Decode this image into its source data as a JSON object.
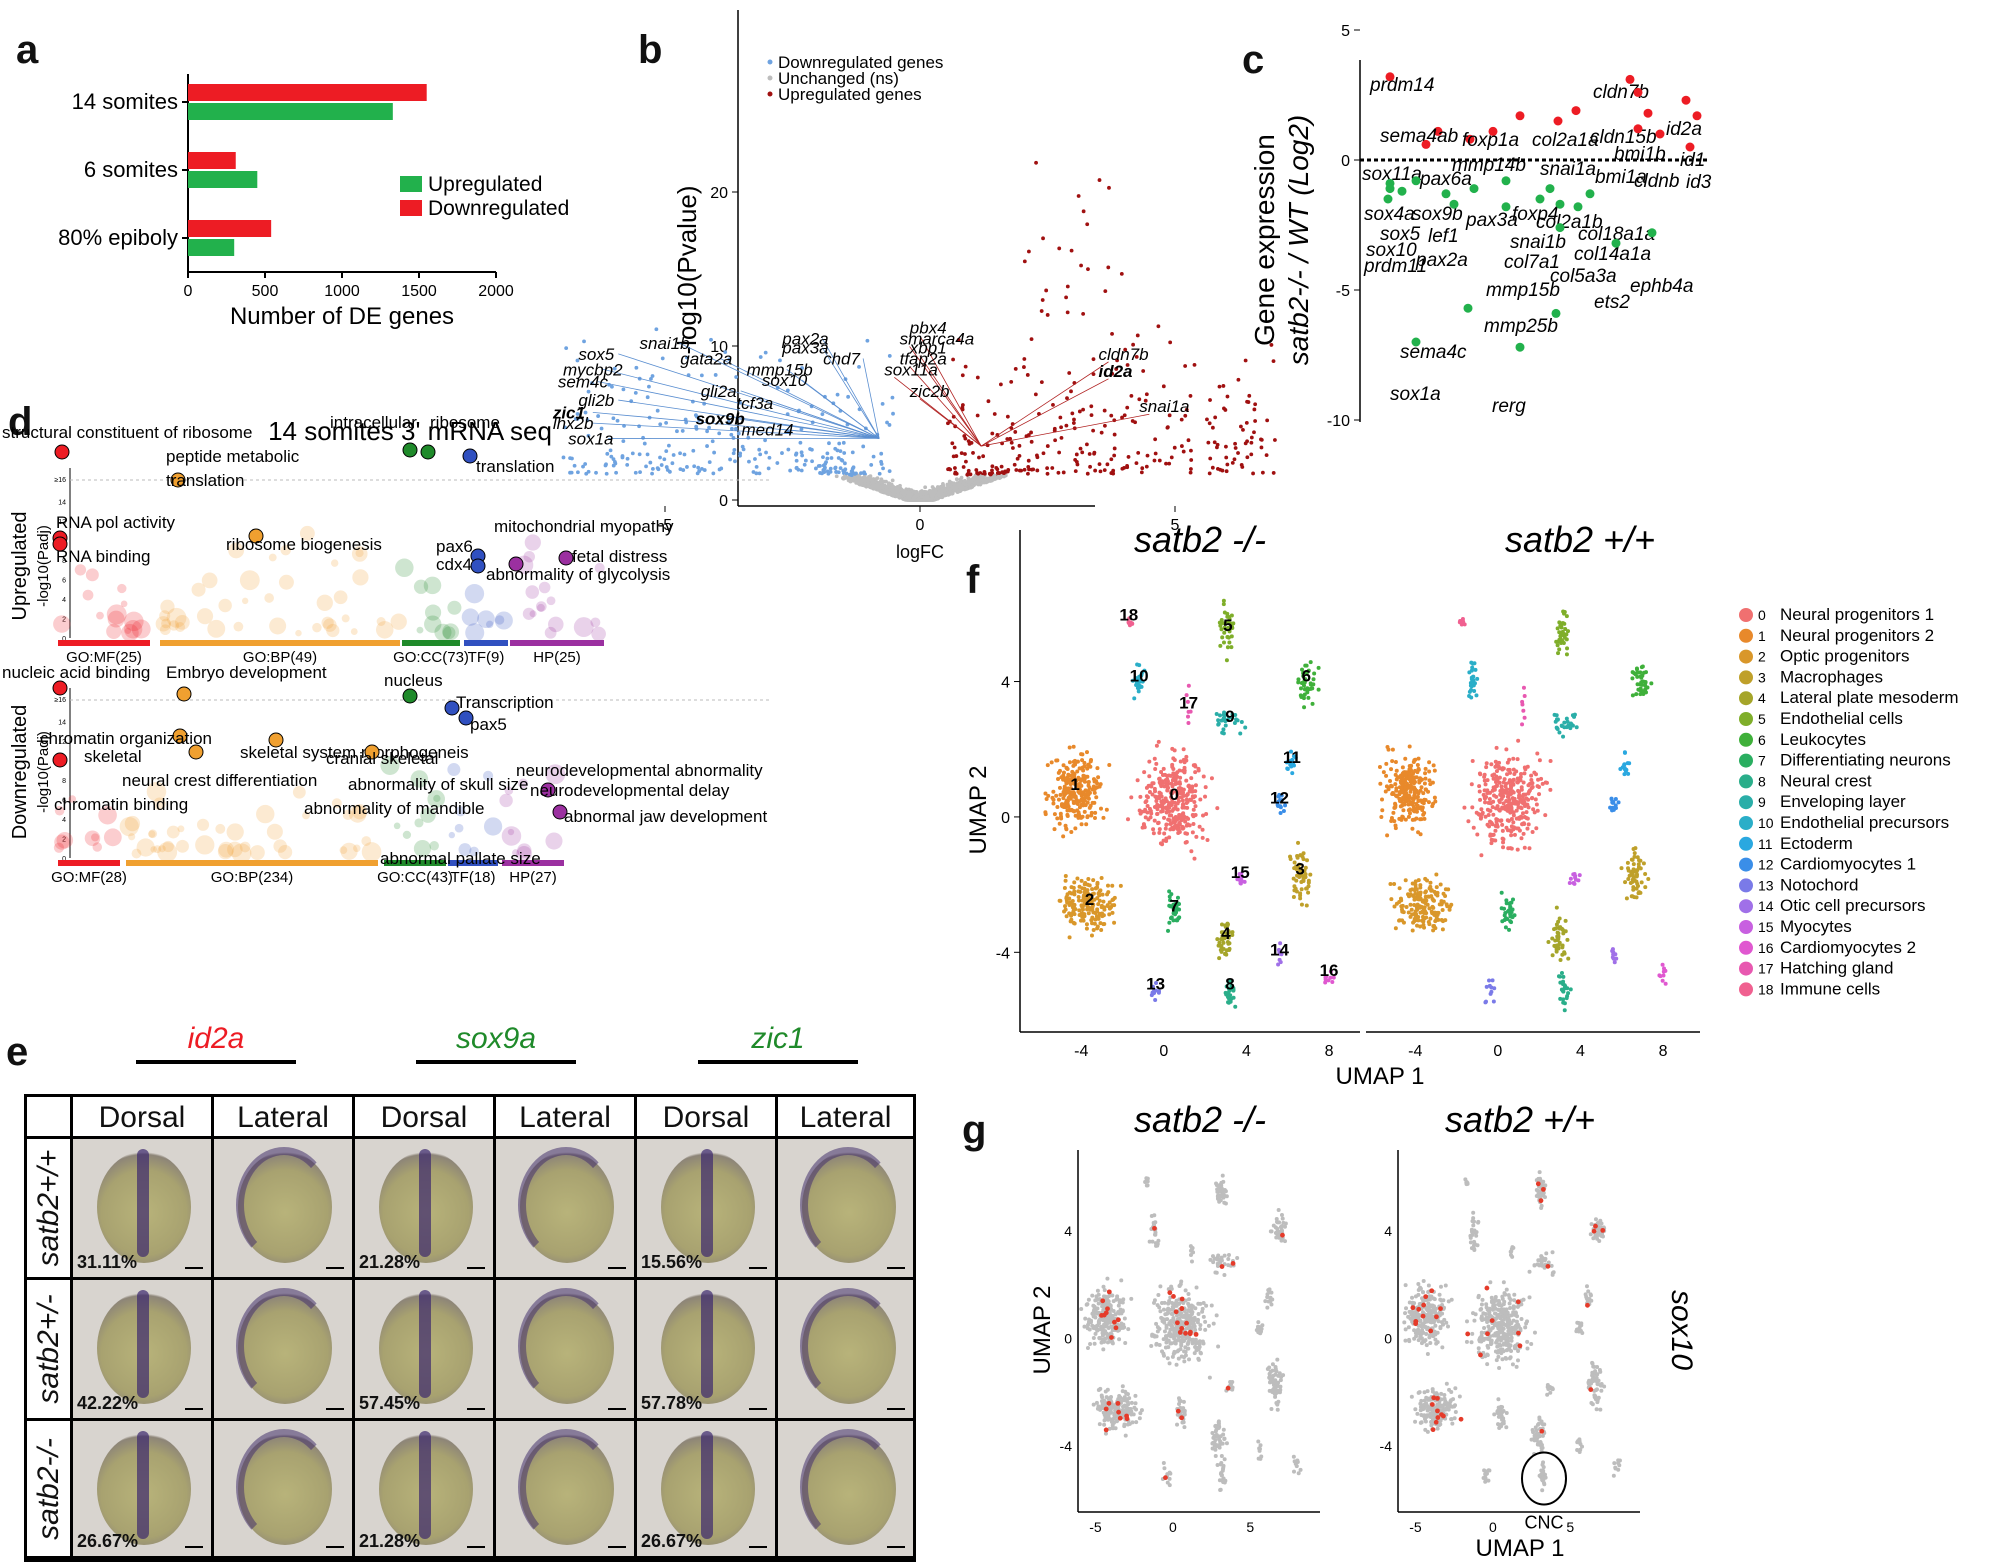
{
  "panel_labels": {
    "a": "a",
    "b": "b",
    "c": "c",
    "d": "d",
    "e": "e",
    "f": "f",
    "g": "g"
  },
  "colors": {
    "red": "#ed1c24",
    "green": "#22b14c",
    "blue": "#6fa3e0",
    "darkred": "#a01010",
    "grey": "#bdbdbd",
    "orange": "#f0a030",
    "purple": "#9b30a0",
    "darkgreen": "#1f8a2a",
    "navy": "#3050c0"
  },
  "chart_data": [
    {
      "id": "a",
      "type": "bar",
      "orientation": "horizontal",
      "categories": [
        "14 somites",
        "6 somites",
        "80% epiboly"
      ],
      "series": [
        {
          "name": "Upregulated",
          "color": "#22b14c",
          "values": [
            1330,
            450,
            300
          ]
        },
        {
          "name": "Downregulated",
          "color": "#ed1c24",
          "values": [
            1550,
            310,
            540
          ]
        }
      ],
      "xlabel": "Number of DE genes",
      "xlim": [
        0,
        2000
      ],
      "xticks": [
        "0",
        "500",
        "1000",
        "1500",
        "2000"
      ],
      "legend": [
        "Upregulated",
        "Downregulated"
      ]
    },
    {
      "id": "b",
      "type": "scatter",
      "xlabel": "logFC",
      "ylabel": "-log10(Pvalue)",
      "xticks": [
        "-5",
        "0",
        "5"
      ],
      "yticks": [
        "0",
        "10",
        "20"
      ],
      "legend": [
        "Downregulated genes",
        "Unchanged (ns)",
        "Upregulated genes"
      ],
      "down_labels": [
        "snai1b",
        "sox5",
        "pax2a",
        "pax3a",
        "gata2a",
        "chd7",
        "mycbp2",
        "mmp15b",
        "sem4c",
        "sox10",
        "gli2a",
        "gli2b",
        "zic1",
        "tcf3a",
        "sox9b",
        "lhx2b",
        "med14",
        "sox1a"
      ],
      "up_labels": [
        "pbx4",
        "smarca4a",
        "xbp1",
        "tfap2a",
        "sox11a",
        "zic2b",
        "cldn7b",
        "id2a",
        "snai1a"
      ]
    },
    {
      "id": "c",
      "type": "scatter",
      "ylabel_line1": "Gene expression",
      "ylabel_line2": "satb2-/- / WT (Log2)",
      "yticks": [
        "5",
        "0",
        "-5",
        "-10"
      ],
      "up_genes": [
        "prdm14",
        "sema4ab",
        "sox11a",
        "pax6a",
        "mmp14b",
        "foxp1a",
        "col2a1a",
        "snai1a",
        "cldn7b",
        "cldn15b",
        "bmi1b",
        "bmi1a",
        "cldnb",
        "id2a",
        "id1",
        "id3"
      ],
      "down_genes": [
        "sox4a",
        "sox9b",
        "sox5",
        "sox10",
        "prdm11",
        "pax3a",
        "lef1",
        "pax2a",
        "foxp4",
        "col2a1b",
        "snai1b",
        "col7a1",
        "mmp15b",
        "col18a1a",
        "col14a1a",
        "col5a3a",
        "ets2",
        "ephb4a",
        "mmp25b",
        "sema4c",
        "sox1a",
        "rerg"
      ]
    },
    {
      "id": "d",
      "type": "scatter",
      "title": "14 somites 3' mRNA seq",
      "up_ylabel": "Upregulated",
      "up_ylabel2": "-log10(Padj)",
      "down_ylabel": "Downregulated",
      "down_ylabel2": "-log10(Padj)",
      "up_categories": [
        "GO:MF(25)",
        "GO:BP(49)",
        "GO:CC(73)",
        "TF(9)",
        "HP(25)"
      ],
      "down_categories": [
        "GO:MF(28)",
        "GO:BP(234)",
        "GO:CC(43)",
        "TF(18)",
        "HP(27)"
      ],
      "up_terms": [
        "structural constituent of ribosome",
        "peptide metabolic",
        "translation",
        "RNA pol activity",
        "RNA binding",
        "ribosome biogenesis",
        "intracellular",
        "ribosome",
        "translation",
        "pax6",
        "cdx4",
        "mitochondrial myopathy",
        "fetal distress",
        "abnormality of glycolysis"
      ],
      "down_terms": [
        "nucleic acid binding",
        "Embryo development",
        "nucleus",
        "Transcription",
        "pax5",
        "chromatin organization",
        "skeletal",
        "neural crest differentiation",
        "skeletal system morphogeneis",
        "cranial skeletal",
        "abnormality of skull size",
        "abnormality of mandible",
        "neurodevelopmental abnormality",
        "neurodevelopmental delay",
        "abnormal jaw development",
        "abnormal pallate size",
        "chromatin binding"
      ],
      "yticks": [
        "0",
        "2",
        "4",
        "6",
        "8",
        "10",
        "12",
        "14",
        "≥16"
      ]
    },
    {
      "id": "f",
      "type": "scatter",
      "titles": [
        "satb2 -/-",
        "satb2 +/+"
      ],
      "xlabel": "UMAP 1",
      "ylabel": "UMAP 2",
      "xticks": [
        "-4",
        "0",
        "4",
        "8"
      ],
      "yticks": [
        "4",
        "0",
        "-4"
      ],
      "clusters": [
        {
          "id": "0",
          "name": "Neural progenitors 1",
          "color": "#f07070"
        },
        {
          "id": "1",
          "name": "Neural progenitors 2",
          "color": "#e8892b"
        },
        {
          "id": "2",
          "name": "Optic progenitors",
          "color": "#d9972a"
        },
        {
          "id": "3",
          "name": "Macrophages",
          "color": "#bfa02a"
        },
        {
          "id": "4",
          "name": "Lateral plate mesoderm",
          "color": "#a5a52a"
        },
        {
          "id": "5",
          "name": "Endothelial cells",
          "color": "#7fae2a"
        },
        {
          "id": "6",
          "name": "Leukocytes",
          "color": "#3fb03a"
        },
        {
          "id": "7",
          "name": "Differentiating neurons",
          "color": "#2aae60"
        },
        {
          "id": "8",
          "name": "Neural crest",
          "color": "#2aae8a"
        },
        {
          "id": "9",
          "name": "Enveloping layer",
          "color": "#2aaea8"
        },
        {
          "id": "10",
          "name": "Endothelial precursors",
          "color": "#2aaec8"
        },
        {
          "id": "11",
          "name": "Ectoderm",
          "color": "#2aa8e0"
        },
        {
          "id": "12",
          "name": "Cardiomyocytes 1",
          "color": "#3a8ee8"
        },
        {
          "id": "13",
          "name": "Notochord",
          "color": "#7a7ae8"
        },
        {
          "id": "14",
          "name": "Otic cell precursors",
          "color": "#a070e8"
        },
        {
          "id": "15",
          "name": "Myocytes",
          "color": "#c860e0"
        },
        {
          "id": "16",
          "name": "Cardiomyocytes 2",
          "color": "#e058d0"
        },
        {
          "id": "17",
          "name": "Hatching gland",
          "color": "#e858b0"
        },
        {
          "id": "18",
          "name": "Immune cells",
          "color": "#f06090"
        }
      ]
    },
    {
      "id": "g",
      "type": "scatter",
      "titles": [
        "satb2 -/-",
        "satb2 +/+"
      ],
      "gene": "sox10",
      "annotation": "CNC",
      "xlabel": "UMAP 1",
      "ylabel": "UMAP 2",
      "xticks": [
        "-5",
        "0",
        "5"
      ],
      "yticks": [
        "4",
        "0",
        "-4"
      ]
    }
  ],
  "panel_e": {
    "genes": [
      {
        "name": "id2a",
        "color": "#ed1c24"
      },
      {
        "name": "sox9a",
        "color": "#1f8a2a"
      },
      {
        "name": "zic1",
        "color": "#1f8a2a"
      }
    ],
    "views": [
      "Dorsal",
      "Lateral",
      "Dorsal",
      "Lateral",
      "Dorsal",
      "Lateral"
    ],
    "rows": [
      {
        "label": "satb2+/+",
        "pcts": [
          "31.11%",
          "21.28%",
          "15.56%"
        ]
      },
      {
        "label": "satb2+/-",
        "pcts": [
          "42.22%",
          "57.45%",
          "57.78%"
        ]
      },
      {
        "label": "satb2-/-",
        "pcts": [
          "26.67%",
          "21.28%",
          "26.67%"
        ]
      }
    ]
  }
}
